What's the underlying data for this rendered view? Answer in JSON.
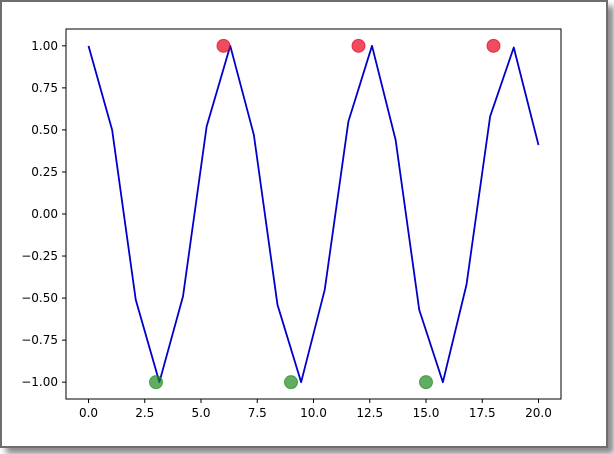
{
  "chart_data": {
    "type": "line",
    "title": "",
    "xlabel": "",
    "ylabel": "",
    "xlim": [
      -1.0,
      21.0
    ],
    "ylim": [
      -1.1,
      1.1
    ],
    "grid": false,
    "x_ticks": [
      0,
      2.5,
      5,
      7.5,
      10,
      12.5,
      15,
      17.5,
      20
    ],
    "x_tick_labels": [
      "0.0",
      "2.5",
      "5.0",
      "7.5",
      "10.0",
      "12.5",
      "15.0",
      "17.5",
      "20.0"
    ],
    "y_ticks": [
      -1.0,
      -0.75,
      -0.5,
      -0.25,
      0.0,
      0.25,
      0.5,
      0.75,
      1.0
    ],
    "y_tick_labels": [
      "−1.00",
      "−0.75",
      "−0.50",
      "−0.25",
      "0.00",
      "0.25",
      "0.50",
      "0.75",
      "1.00"
    ],
    "series": [
      {
        "kind": "line",
        "color": "#0000cc",
        "x": [
          0.0,
          1.05,
          2.1,
          3.15,
          4.2,
          5.25,
          6.3,
          7.35,
          8.4,
          9.45,
          10.5,
          11.55,
          12.6,
          13.65,
          14.7,
          15.75,
          16.8,
          17.85,
          18.9,
          20.0
        ],
        "y": [
          1.0,
          0.5,
          -0.51,
          -1.0,
          -0.49,
          0.52,
          1.0,
          0.47,
          -0.54,
          -1.0,
          -0.45,
          0.55,
          1.0,
          0.44,
          -0.57,
          -1.0,
          -0.42,
          0.58,
          0.99,
          0.41
        ]
      },
      {
        "kind": "scatter",
        "color": "#e8001c",
        "x": [
          6,
          12,
          18
        ],
        "y": [
          1.0,
          1.0,
          1.0
        ]
      },
      {
        "kind": "scatter",
        "color": "#1e8a1e",
        "x": [
          3,
          9,
          15
        ],
        "y": [
          -1.0,
          -1.0,
          -1.0
        ]
      }
    ]
  }
}
